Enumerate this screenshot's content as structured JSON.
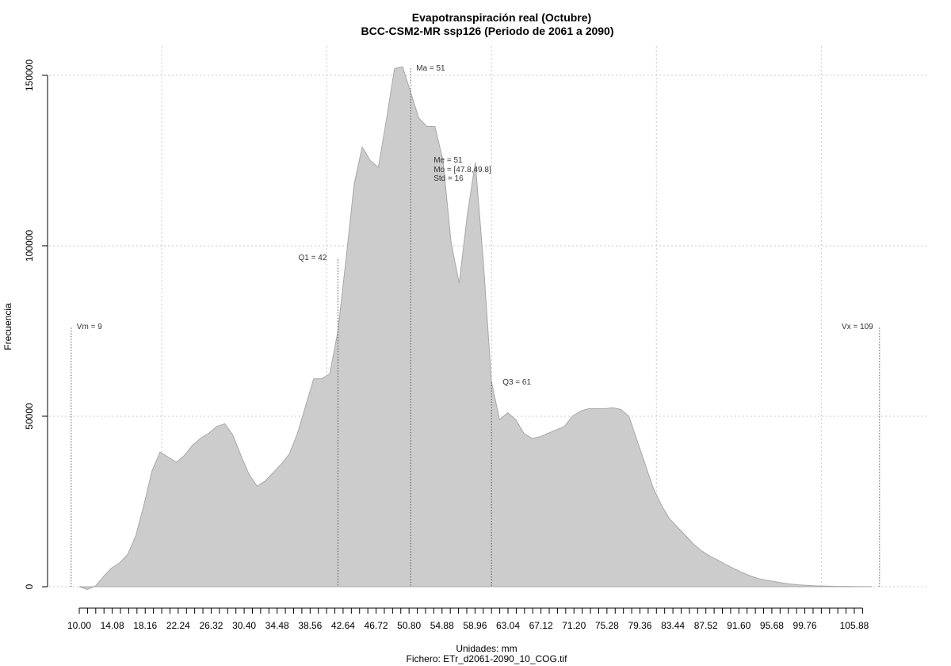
{
  "chart_data": {
    "type": "area",
    "title": "Evapotranspiración real (Octubre)",
    "subtitle": "BCC-CSM2-MR ssp126 (Periodo de 2061 a 2090)",
    "xlabel": "Unidades: mm",
    "ylabel": "Frecuencia",
    "footer": "Fichero: ETr_d2061-2090_10_COG.tif",
    "xlim": [
      10,
      109
    ],
    "ylim": [
      0,
      150000
    ],
    "grid": true,
    "fill_color": "#cccccc",
    "x_ticks": [
      10.0,
      11.02,
      12.04,
      13.06,
      14.08,
      15.1,
      16.12,
      17.14,
      18.16,
      19.18,
      20.2,
      21.22,
      22.24,
      23.26,
      24.28,
      25.3,
      26.32,
      27.34,
      28.36,
      29.38,
      30.4,
      31.42,
      32.44,
      33.46,
      34.48,
      35.5,
      36.52,
      37.54,
      38.56,
      39.58,
      40.6,
      41.62,
      42.64,
      43.66,
      44.68,
      45.7,
      46.72,
      47.74,
      48.76,
      49.78,
      50.8,
      51.82,
      52.84,
      53.86,
      54.88,
      55.9,
      56.92,
      57.94,
      58.96,
      59.98,
      61.0,
      62.02,
      63.04,
      64.06,
      65.08,
      66.1,
      67.12,
      68.14,
      69.16,
      70.18,
      71.2,
      72.22,
      73.24,
      74.26,
      75.28,
      76.3,
      77.32,
      78.34,
      79.36,
      80.38,
      81.4,
      82.42,
      83.44,
      84.46,
      85.48,
      86.5,
      87.52,
      88.54,
      89.56,
      90.58,
      91.6,
      92.62,
      93.64,
      94.66,
      95.68,
      96.7,
      97.72,
      98.74,
      99.76,
      100.78,
      101.8,
      102.82,
      103.84,
      104.86,
      105.88,
      106.9
    ],
    "x_tick_labels": [
      "10.00",
      "14.08",
      "18.16",
      "22.24",
      "26.32",
      "30.40",
      "34.48",
      "38.56",
      "42.64",
      "46.72",
      "50.80",
      "54.88",
      "58.96",
      "63.04",
      "67.12",
      "71.20",
      "75.28",
      "79.36",
      "83.44",
      "87.52",
      "91.60",
      "95.68",
      "99.76",
      "105.88"
    ],
    "y_ticks": [
      0,
      50000,
      100000,
      150000
    ],
    "x_grid": [
      20.2,
      40.6,
      61.0,
      81.4,
      101.8
    ],
    "x": [
      10.0,
      11.0,
      12.0,
      13.0,
      14.0,
      15.0,
      16.0,
      17.0,
      18.0,
      19.0,
      20.0,
      21.0,
      22.0,
      23.0,
      24.0,
      25.0,
      26.0,
      27.0,
      28.0,
      29.0,
      30.0,
      31.0,
      32.0,
      33.0,
      34.0,
      35.0,
      36.0,
      37.0,
      38.0,
      39.0,
      40.0,
      41.0,
      42.0,
      43.0,
      44.0,
      45.0,
      46.0,
      47.0,
      48.0,
      49.0,
      50.0,
      51.0,
      52.0,
      53.0,
      54.0,
      55.0,
      56.0,
      57.0,
      58.0,
      59.0,
      60.0,
      61.0,
      62.0,
      63.0,
      64.0,
      65.0,
      66.0,
      67.0,
      68.0,
      69.0,
      70.0,
      71.0,
      72.0,
      73.0,
      74.0,
      75.0,
      76.0,
      77.0,
      78.0,
      79.0,
      80.0,
      81.0,
      82.0,
      83.0,
      84.0,
      85.0,
      86.0,
      87.0,
      88.0,
      89.0,
      90.0,
      91.0,
      92.0,
      93.0,
      94.0,
      95.0,
      96.0,
      97.0,
      98.0,
      99.0,
      100.0,
      101.0,
      102.0,
      103.0,
      104.0,
      105.0,
      106.0,
      107.0,
      108.0
    ],
    "values": [
      0,
      -800,
      200,
      3000,
      5500,
      7000,
      9500,
      15000,
      24000,
      34000,
      39500,
      38000,
      36500,
      38500,
      41500,
      43500,
      45000,
      47000,
      47800,
      44500,
      38500,
      33000,
      29500,
      31000,
      33500,
      36000,
      39000,
      45000,
      53000,
      61000,
      61000,
      62500,
      75000,
      96000,
      118000,
      129000,
      125000,
      123000,
      137000,
      152000,
      152500,
      145000,
      137500,
      135000,
      135000,
      125000,
      101000,
      89000,
      109000,
      124500,
      95000,
      60000,
      49000,
      51000,
      49000,
      45000,
      43500,
      44000,
      45000,
      46000,
      47000,
      50000,
      51500,
      52200,
      52200,
      52200,
      52500,
      52000,
      50000,
      43000,
      36000,
      29000,
      24000,
      20000,
      17500,
      15000,
      12500,
      10500,
      9000,
      7800,
      6500,
      5300,
      4200,
      3200,
      2400,
      1900,
      1500,
      1100,
      800,
      550,
      400,
      250,
      200,
      150,
      100,
      80,
      60,
      40,
      20
    ],
    "annotations": [
      {
        "label": "Vm = 9",
        "x": 9,
        "line_top": 76000
      },
      {
        "label": "Q1 = 42",
        "x": 42,
        "line_top": 96000
      },
      {
        "label": "Ma = 51",
        "x": 51,
        "line_top": 152000
      },
      {
        "label": "Me = 51",
        "x": 51
      },
      {
        "label": "Mo = [47.8,49.8]",
        "x": 51
      },
      {
        "label": "Std = 16",
        "x": 51
      },
      {
        "label": "Q3 = 61",
        "x": 61,
        "line_top": 60000
      },
      {
        "label": "Vx = 109",
        "x": 109,
        "line_top": 76000
      }
    ]
  }
}
